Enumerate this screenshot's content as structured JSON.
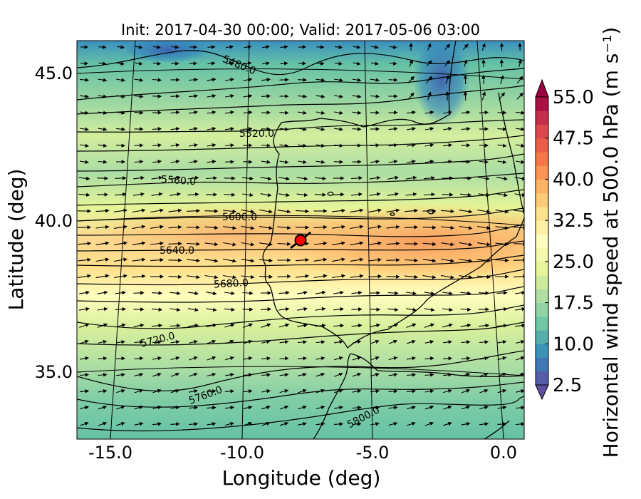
{
  "figure": {
    "title": "Init: 2017-04-30 00:00; Valid: 2017-05-06 03:00",
    "xlabel": "Longitude (deg)",
    "ylabel": "Latitude (deg)",
    "colorbar_label": "Horizontal wind speed at 500.0 hPa (m s⁻¹)"
  },
  "map": {
    "x_ticks": [
      {
        "value": -15.0,
        "label": "-15.0"
      },
      {
        "value": -10.0,
        "label": "-10.0"
      },
      {
        "value": -5.0,
        "label": "-5.0"
      },
      {
        "value": 0.0,
        "label": "0.0"
      }
    ],
    "y_ticks": [
      {
        "value": 45.0,
        "label": "45.0"
      },
      {
        "value": 40.0,
        "label": "40.0"
      },
      {
        "value": 35.0,
        "label": "35.0"
      }
    ],
    "contour_labels": [
      "5480.0",
      "5520.0",
      "5560.0",
      "5600.0",
      "5640.0",
      "5680.0",
      "5720.0",
      "5760.0",
      "5800.0"
    ],
    "marker": {
      "color": "#ff0000"
    }
  },
  "colorbar": {
    "min": 2.5,
    "max": 55.0,
    "step": 2.5,
    "tick_labels": [
      "2.5",
      "10.0",
      "17.5",
      "25.0",
      "32.5",
      "40.0",
      "47.5",
      "55.0"
    ],
    "colors": [
      "#5e4fa2",
      "#3288bd",
      "#66c2a5",
      "#abdda4",
      "#e6f598",
      "#ffffbf",
      "#fee08b",
      "#fdae61",
      "#f46d43",
      "#d53e4f",
      "#9e0142"
    ]
  }
}
